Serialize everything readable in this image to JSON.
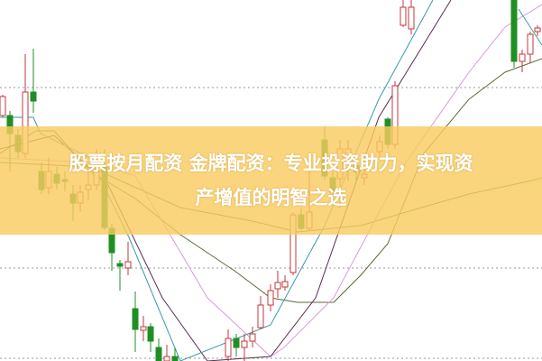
{
  "headline": {
    "line1": "股票按月配资 金牌配资：专业投资助力，实现资",
    "line2": "产增值的明智之选"
  },
  "colors": {
    "banner": "#f9cc60",
    "up_candle": "#c0393b",
    "down_candle": "#1f8f24",
    "ma_teal": "#3a9aa8",
    "ma_purple": "#5a2b55",
    "ma_pink": "#d89ad8",
    "ma_olive": "#5c6b3a",
    "ma_green": "#3c7a3c",
    "grid": "#999999"
  }
}
